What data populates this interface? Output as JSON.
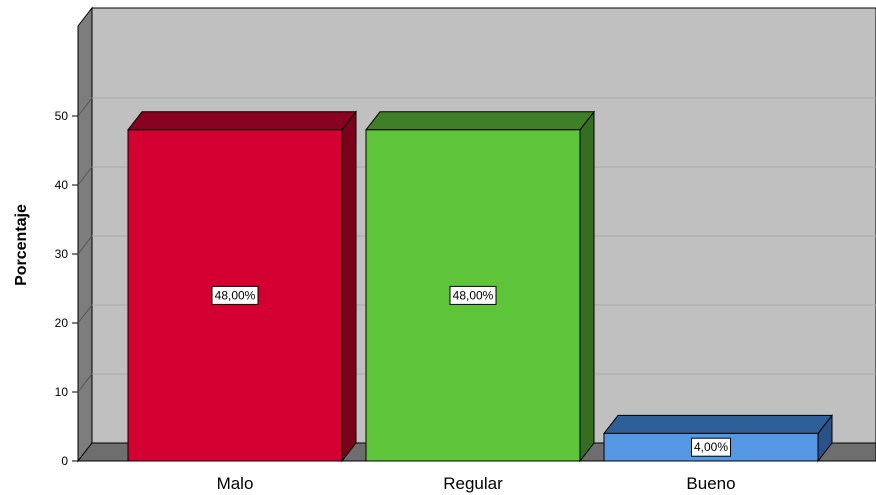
{
  "chart_data": {
    "type": "bar",
    "categories": [
      "Malo",
      "Regular",
      "Bueno"
    ],
    "values": [
      48.0,
      48.0,
      4.0
    ],
    "data_labels": [
      "48,00%",
      "48,00%",
      "4,00%"
    ],
    "ylabel": "Porcentaje",
    "xlabel": "",
    "ylim": [
      0,
      50
    ],
    "yticks": [
      "0",
      "10",
      "20",
      "30",
      "40",
      "50"
    ],
    "grid": true,
    "three_d": true,
    "colors": {
      "Malo": {
        "front": "#d50032",
        "top": "#8a0020",
        "side": "#7a001c"
      },
      "Regular": {
        "front": "#5ec43a",
        "top": "#3f7f28",
        "side": "#356d22"
      },
      "Bueno": {
        "front": "#5597e3",
        "top": "#2f5f99",
        "side": "#2a5288"
      },
      "plot_background": "#c0c0c0",
      "floor": "#6e6e6e",
      "wall_side": "#7d7d7d",
      "gridline": "#a8a8a8"
    }
  }
}
